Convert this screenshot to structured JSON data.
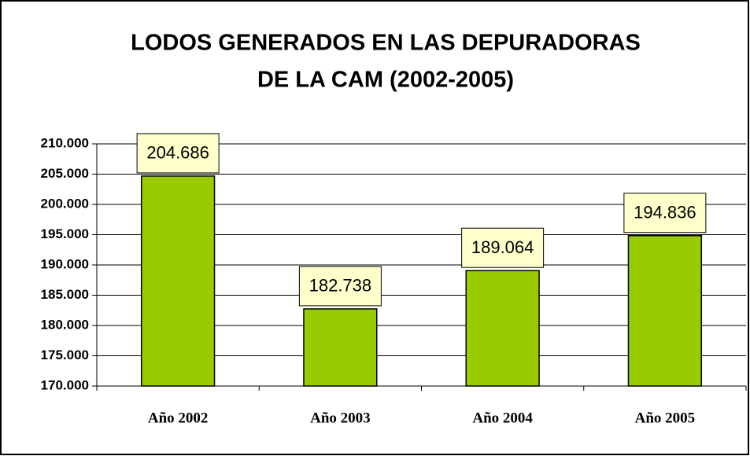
{
  "chart_data": {
    "type": "bar",
    "title": [
      "LODOS GENERADOS EN LAS DEPURADORAS",
      "DE LA CAM (2002-2005)"
    ],
    "categories": [
      "Año 2002",
      "Año 2003",
      "Año 2004",
      "Año 2005"
    ],
    "values": [
      204686,
      182738,
      189064,
      194836
    ],
    "value_labels": [
      "204.686",
      "182.738",
      "189.064",
      "194.836"
    ],
    "color": "#99cc00",
    "ylim": [
      170000,
      210000
    ],
    "yticks": [
      {
        "value": 170000,
        "label": "170.000"
      },
      {
        "value": 175000,
        "label": "175.000"
      },
      {
        "value": 180000,
        "label": "180.000"
      },
      {
        "value": 185000,
        "label": "185.000"
      },
      {
        "value": 190000,
        "label": "190.000"
      },
      {
        "value": 195000,
        "label": "195.000"
      },
      {
        "value": 200000,
        "label": "200.000"
      },
      {
        "value": 205000,
        "label": "205.000"
      },
      {
        "value": 210000,
        "label": "210.000"
      }
    ],
    "grid": true
  }
}
